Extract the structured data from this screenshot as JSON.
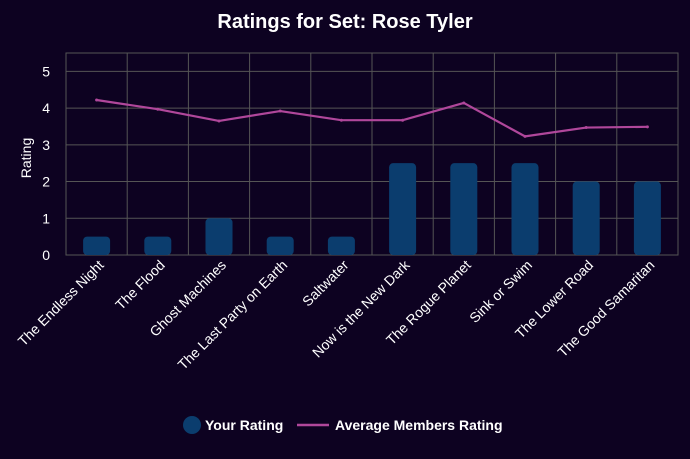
{
  "chart_data": {
    "type": "bar",
    "title": "Ratings for Set: Rose Tyler",
    "xlabel": "",
    "ylabel": "Rating",
    "ylim": [
      0,
      5.5
    ],
    "yticks": [
      0,
      1,
      2,
      3,
      4,
      5
    ],
    "grid": true,
    "legend_position": "bottom",
    "categories": [
      "The Endless Night",
      "The Flood",
      "Ghost Machines",
      "The Last Party on Earth",
      "Saltwater",
      "Now is the New Dark",
      "The Rogue Planet",
      "Sink or Swim",
      "The Lower Road",
      "The Good Samaritan"
    ],
    "series": [
      {
        "name": "Your Rating",
        "type": "bar",
        "color": "#0b3d6e",
        "values": [
          0.5,
          0.5,
          1,
          0.5,
          0.5,
          2.5,
          2.5,
          2.5,
          2,
          2
        ]
      },
      {
        "name": "Average Members Rating",
        "type": "line",
        "color": "#b0479b",
        "values": [
          4.22,
          3.97,
          3.65,
          3.92,
          3.67,
          3.67,
          4.14,
          3.23,
          3.47,
          3.49
        ]
      }
    ]
  },
  "colors": {
    "background": "#0d0221",
    "grid": "#555555",
    "text": "#ffffff"
  }
}
